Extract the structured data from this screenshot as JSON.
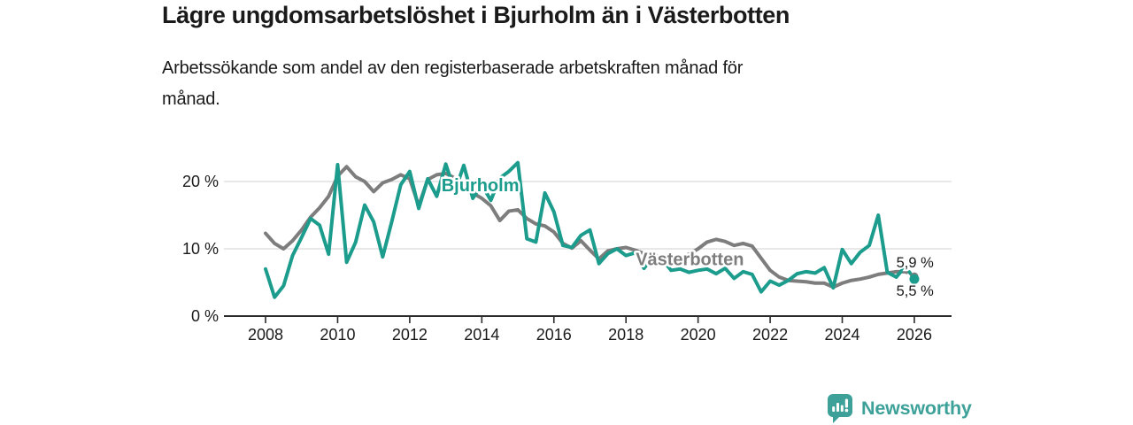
{
  "header": {
    "title": "Lägre ungdomsarbetslöshet i Bjurholm än i Västerbotten",
    "subtitle": "Arbetssökande som andel av den registerbaserade arbetskraften månad för\nmånad."
  },
  "footer": {
    "brand": "Newsworthy"
  },
  "colors": {
    "teal_series": "#1b9c8c",
    "gray_series": "#7d7d7d",
    "grid": "#d9d9d9",
    "axis": "#2b2b2b",
    "text_dark": "#1a1a1a",
    "logo_teal": "#3da199",
    "background": "#ffffff"
  },
  "chart_data": {
    "type": "line",
    "unit": "%",
    "title": "Lägre ungdomsarbetslöshet i Bjurholm än i Västerbotten",
    "subtitle": "Arbetssökande som andel av den registerbaserade arbetskraften månad för månad.",
    "x_start": 2008.0,
    "x_step": 0.25,
    "x_axis": {
      "ticks": [
        2008,
        2010,
        2012,
        2014,
        2016,
        2018,
        2020,
        2022,
        2024,
        2026
      ],
      "range": [
        2006.9,
        2027.0
      ]
    },
    "y_axis": {
      "ticks": [
        {
          "value": 0,
          "label": "0 %"
        },
        {
          "value": 10,
          "label": "10 %"
        },
        {
          "value": 20,
          "label": "20 %"
        }
      ],
      "range": [
        0,
        25
      ],
      "gridlines": true
    },
    "legend_position": "inline-labels",
    "series": [
      {
        "name": "Västerbotten",
        "color": "#7d7d7d",
        "latest_value": 5.9,
        "dashed_from_x": 2025.75,
        "dot_radius": 4.5,
        "label": {
          "text": "Västerbotten",
          "x": 2018.27,
          "y": 8.5
        },
        "end_label": {
          "text": "5,9 %",
          "x": 2025.5,
          "y": 8.0
        },
        "values": [
          12.3,
          10.8,
          10.0,
          11.2,
          12.8,
          14.7,
          16.1,
          17.8,
          20.8,
          22.2,
          20.7,
          20.0,
          18.5,
          19.8,
          20.3,
          21.0,
          20.4,
          16.4,
          20.3,
          21.0,
          21.2,
          20.5,
          19.5,
          18.3,
          17.5,
          16.4,
          14.2,
          15.6,
          15.8,
          14.5,
          13.7,
          13.4,
          12.5,
          10.8,
          10.1,
          11.2,
          9.8,
          8.5,
          9.7,
          10.0,
          10.2,
          9.8,
          9.3,
          9.0,
          8.8,
          8.6,
          8.5,
          9.2,
          10.0,
          11.0,
          11.4,
          11.1,
          10.5,
          10.8,
          10.4,
          8.6,
          6.8,
          5.8,
          5.3,
          5.2,
          5.1,
          4.9,
          4.9,
          4.3,
          4.9,
          5.3,
          5.5,
          5.8,
          6.2,
          6.4,
          6.6,
          6.6,
          5.9
        ]
      },
      {
        "name": "Bjurholm",
        "color": "#1b9c8c",
        "latest_value": 5.5,
        "dashed_from_x": 2025.75,
        "dot_radius": 5.5,
        "label": {
          "text": "Bjurholm",
          "x": 2012.88,
          "y": 19.5
        },
        "end_label": {
          "text": "5,5 %",
          "x": 2025.5,
          "y": 3.8
        },
        "values": [
          7.0,
          2.8,
          4.5,
          9.0,
          11.7,
          14.5,
          13.5,
          9.2,
          22.5,
          8.0,
          11.0,
          16.5,
          14.0,
          8.8,
          14.0,
          19.5,
          21.5,
          16.0,
          20.4,
          17.8,
          22.6,
          18.5,
          22.4,
          17.5,
          19.5,
          17.2,
          20.5,
          21.5,
          22.8,
          11.5,
          11.0,
          18.3,
          15.5,
          10.5,
          10.2,
          12.0,
          12.8,
          7.8,
          9.3,
          10.0,
          9.0,
          9.4,
          7.1,
          8.8,
          8.5,
          6.8,
          7.0,
          6.5,
          6.8,
          7.0,
          6.3,
          7.1,
          5.6,
          6.6,
          6.2,
          3.6,
          5.2,
          4.6,
          5.3,
          6.3,
          6.6,
          6.4,
          7.2,
          4.2,
          9.9,
          7.8,
          9.5,
          10.5,
          15.0,
          6.5,
          5.8,
          7.4,
          5.5
        ]
      }
    ]
  }
}
